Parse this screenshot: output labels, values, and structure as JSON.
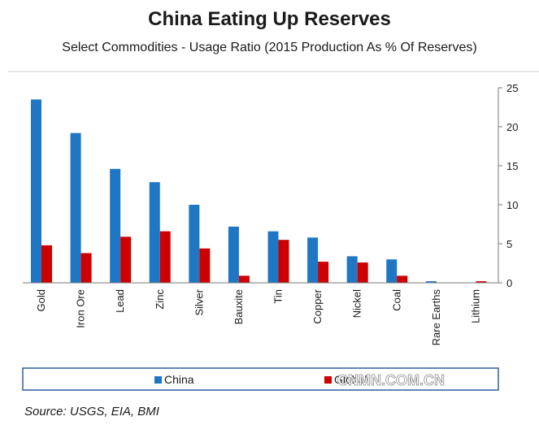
{
  "title": "China Eating Up Reserves",
  "subtitle": "Select Commodities - Usage Ratio (2015 Production As % Of Reserves)",
  "source": "Source: USGS, EIA, BMI",
  "watermark": "CNMN.COM.CN",
  "chart_data": {
    "type": "bar",
    "categories": [
      "Gold",
      "Iron Ore",
      "Lead",
      "Zinc",
      "Silver",
      "Bauxite",
      "Tin",
      "Copper",
      "Nickel",
      "Coal",
      "Rare Earths",
      "Lithium"
    ],
    "series": [
      {
        "name": "China",
        "color": "#1f77c4",
        "values": [
          23.5,
          19.2,
          14.6,
          12.9,
          10.0,
          7.2,
          6.6,
          5.8,
          3.4,
          3.0,
          0.2,
          0.0
        ]
      },
      {
        "name": "Global",
        "color": "#cc0000",
        "values": [
          4.8,
          3.8,
          5.9,
          6.6,
          4.4,
          0.9,
          5.5,
          2.7,
          2.6,
          0.9,
          0.0,
          0.2
        ]
      }
    ],
    "ylim": [
      0,
      25
    ],
    "yticks": [
      "0",
      "5",
      "10",
      "15",
      "20",
      "25"
    ],
    "y_axis_side": "right",
    "grid": false,
    "legend_position": "bottom"
  }
}
